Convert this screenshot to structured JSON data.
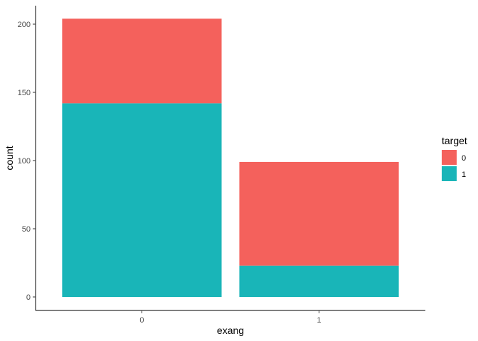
{
  "chart_data": {
    "type": "bar",
    "stacked": true,
    "xlabel": "exang",
    "ylabel": "count",
    "categories": [
      "0",
      "1"
    ],
    "ylim": [
      0,
      210
    ],
    "yticks": [
      0,
      50,
      100,
      150,
      200
    ],
    "grid": false,
    "legend": {
      "title": "target",
      "position": "right"
    },
    "series": [
      {
        "name": "1",
        "color": "#19B5B8",
        "values": [
          142,
          23
        ]
      },
      {
        "name": "0",
        "color": "#F4615C",
        "values": [
          62,
          76
        ]
      }
    ],
    "legend_order": [
      "0",
      "1"
    ]
  }
}
